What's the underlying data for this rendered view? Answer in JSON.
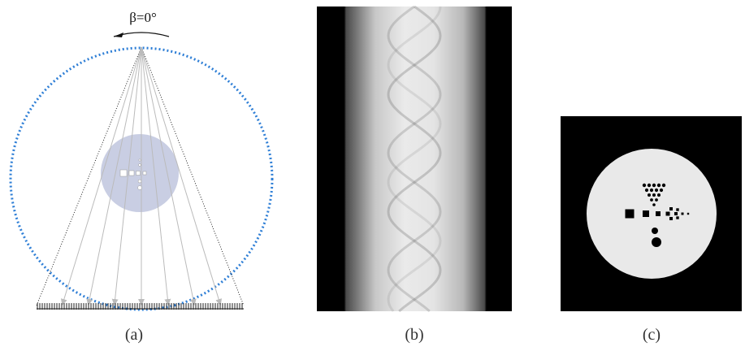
{
  "panels": [
    {
      "label": "(a)",
      "annotation": "β=0°"
    },
    {
      "label": "(b)"
    },
    {
      "label": "(c)"
    }
  ]
}
